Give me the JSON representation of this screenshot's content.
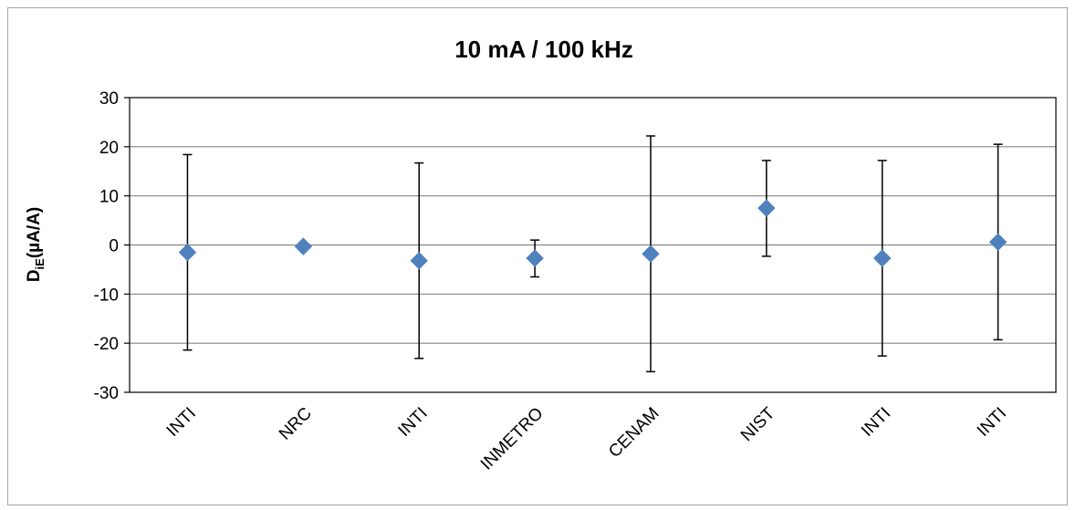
{
  "chart_data": {
    "type": "scatter",
    "title": "10 mA / 100 kHz",
    "ylabel_main": "D",
    "ylabel_sub": "iE",
    "ylabel_rest": "(µA/A)",
    "xlabel": "",
    "ylim": [
      -30,
      30
    ],
    "yticks": [
      30,
      20,
      10,
      0,
      -10,
      -20,
      -30
    ],
    "grid": true,
    "legend": "none",
    "marker_color": "#4f81bd",
    "categories": [
      "INTI",
      "NRC",
      "INTI",
      "INMETRO",
      "CENAM",
      "NIST",
      "INTI",
      "INTI"
    ],
    "values": [
      -1.5,
      -0.3,
      -3.2,
      -2.7,
      -1.8,
      7.5,
      -2.7,
      0.6
    ],
    "error_upper": [
      18.4,
      null,
      16.7,
      1.0,
      22.2,
      17.2,
      17.2,
      20.5
    ],
    "error_lower": [
      -21.4,
      null,
      -23.1,
      -6.5,
      -25.8,
      -2.3,
      -22.6,
      -19.3
    ]
  }
}
